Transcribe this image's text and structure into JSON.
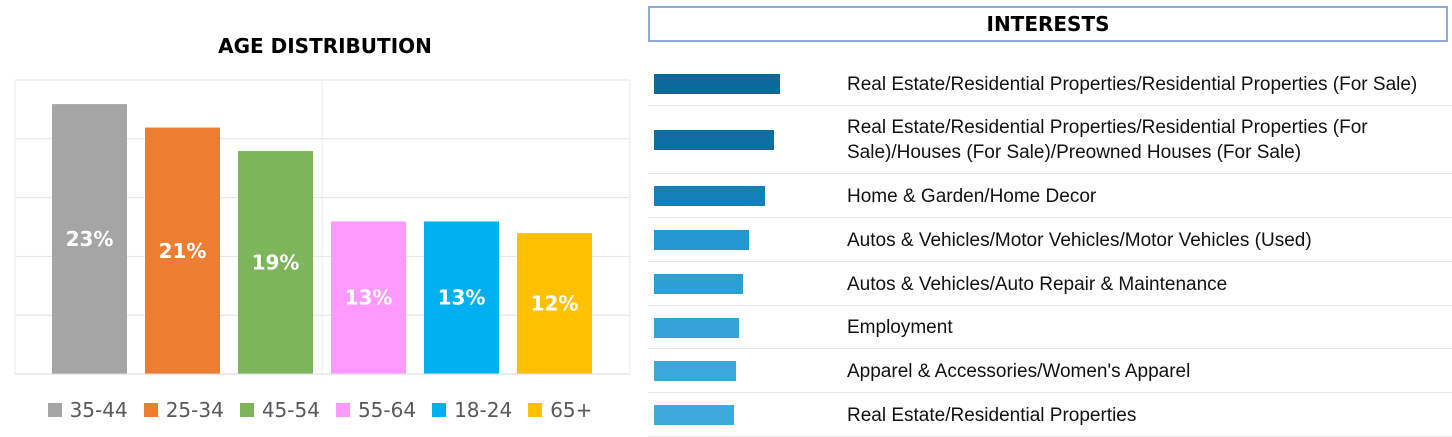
{
  "chart_data": [
    {
      "type": "bar",
      "title": "AGE DISTRIBUTION",
      "categories": [
        "35-44",
        "25-34",
        "45-54",
        "55-64",
        "18-24",
        "65+"
      ],
      "values": [
        23,
        21,
        19,
        13,
        13,
        12
      ],
      "value_labels": [
        "23%",
        "21%",
        "19%",
        "13%",
        "13%",
        "12%"
      ],
      "unit": "%",
      "colors": [
        "#a5a5a5",
        "#ed7d31",
        "#7db55a",
        "#ff99ff",
        "#00b0f0",
        "#ffc000"
      ],
      "ylim": [
        0,
        23.3
      ],
      "grid": true,
      "legend_position": "bottom",
      "legend": [
        "35-44",
        "25-34",
        "45-54",
        "55-64",
        "18-24",
        "65+"
      ]
    },
    {
      "type": "bar",
      "orientation": "horizontal",
      "title": "INTERESTS",
      "categories": [
        "Real Estate/Residential Properties/Residential Properties (For Sale)",
        "Real Estate/Residential Properties/Residential Properties (For Sale)/Houses (For Sale)/Preowned Houses (For Sale)",
        "Home & Garden/Home Decor",
        "Autos & Vehicles/Motor Vehicles/Motor Vehicles (Used)",
        "Autos & Vehicles/Auto Repair & Maintenance",
        "Employment",
        "Apparel & Accessories/Women's Apparel",
        "Real Estate/Residential Properties"
      ],
      "values": [
        126,
        120,
        111,
        95,
        89,
        85,
        82,
        80
      ],
      "colors": [
        "#0b6a9a",
        "#0d6fa3",
        "#1380b8",
        "#2596d0",
        "#2d9fd6",
        "#35a3d7",
        "#3da7da",
        "#3fa9db"
      ]
    }
  ]
}
